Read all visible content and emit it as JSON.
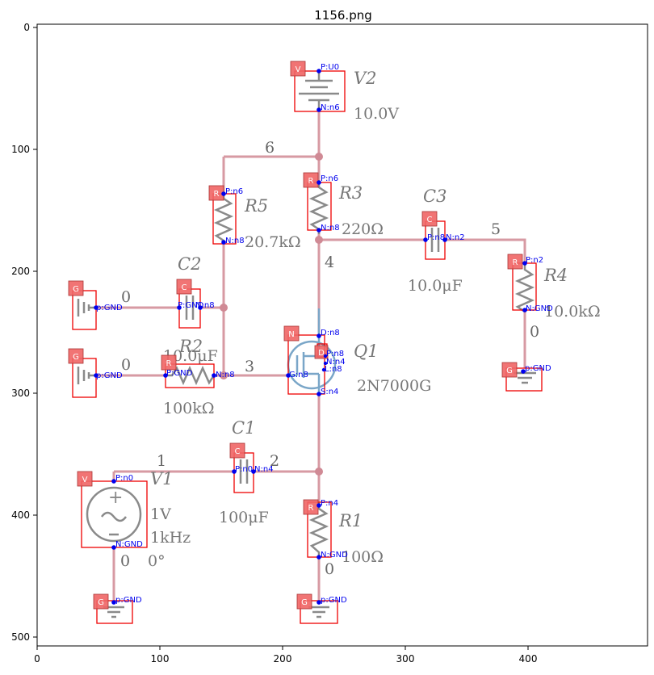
{
  "title": "1156.png",
  "x_ticks": [
    "0",
    "100",
    "200",
    "300",
    "400"
  ],
  "y_ticks": [
    "0",
    "100",
    "200",
    "300",
    "400",
    "500"
  ],
  "components": {
    "v2": {
      "name": "V2",
      "value": "10.0V"
    },
    "r3": {
      "name": "R3",
      "value": "220Ω"
    },
    "r5": {
      "name": "R5",
      "value": "20.7kΩ"
    },
    "c3": {
      "name": "C3",
      "value": "10.0μF"
    },
    "r4": {
      "name": "R4",
      "value": "10.0kΩ"
    },
    "c2": {
      "name": "C2",
      "value": "10.0μF"
    },
    "r2": {
      "name": "R2",
      "value": "100kΩ"
    },
    "q1": {
      "name": "Q1",
      "value": "2N7000G"
    },
    "c1": {
      "name": "C1",
      "value": "100μF"
    },
    "v1": {
      "name": "V1",
      "value": "1V",
      "value2": "1kHz",
      "value3": "0°"
    },
    "r1": {
      "name": "R1",
      "value": "100Ω"
    }
  },
  "nets": {
    "n6": "6",
    "n8": "4",
    "n2": "5",
    "n0": "1",
    "n4": "2",
    "n3": "3",
    "gnd1": "0",
    "gnd2": "0",
    "gnd3": "0",
    "gnd4": "0"
  },
  "tags": {
    "V": "V",
    "R": "R",
    "C": "C",
    "G": "G",
    "N": "N",
    "D": "D"
  },
  "pins": {
    "v2_p": "P:U0",
    "v2_n": "N:n6",
    "r3_p": "P:n6",
    "r3_n": "N:n8",
    "r5_p": "P:n6",
    "r5_n": "N:n8",
    "c3_p": "P:n8",
    "c3_n": "N:n2",
    "r4_p": "P:n2",
    "r4_n": "N:GND",
    "g_r4": "p:GND",
    "c2_p": "P:GND",
    "c2_n": "N:n8",
    "g_c2": "p:GND",
    "r2_p": "P:GND",
    "r2_n": "N:n8",
    "g_r2": "p:GND",
    "q1_d": "D:n8",
    "q1_g": "G:n8",
    "q1_s": "S:n4",
    "d_p": "P:n8",
    "d_n": "N:n4",
    "d_l": "L:n8",
    "c1_p": "P:n0",
    "c1_n": "N:n4",
    "v1_p": "P:n0",
    "v1_n": "N:GND",
    "g_v1": "p:GND",
    "r1_p": "P:n4",
    "r1_n": "N:GND",
    "g_r1": "p:GND"
  }
}
